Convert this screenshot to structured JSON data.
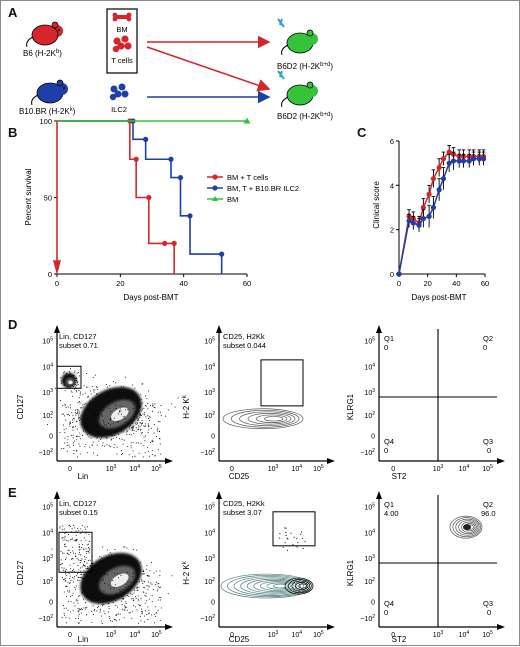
{
  "panels": {
    "A": "A",
    "B": "B",
    "C": "C",
    "D": "D",
    "E": "E"
  },
  "schematic": {
    "donor_b6": "B6 (H-2K",
    "donor_b6_sup": "b",
    "donor_b10": "B10.BR (H-2K",
    "donor_b10_sup": "k",
    "bm": "BM",
    "tcells": "T cells",
    "ilc2": "ILC2",
    "recipient": "B6D2 (H-2K",
    "recipient_sup": "b+d",
    "colors": {
      "b6_mouse": "#d7262b",
      "b10_mouse": "#1f3fa8",
      "recipient_mouse": "#35c33a",
      "red_arrow": "#d7262b",
      "blue_arrow": "#1f3fa8"
    }
  },
  "chart_data": [
    {
      "id": "B",
      "type": "line",
      "step": true,
      "xlabel": "Days post-BMT",
      "ylabel": "Percent survival",
      "xlim": [
        0,
        60
      ],
      "ylim": [
        0,
        100
      ],
      "xticks": [
        "0",
        "20",
        "40",
        "60"
      ],
      "yticks": [
        "0",
        "50",
        "100"
      ],
      "legend_position": "right",
      "series": [
        {
          "name": "BM + T cells",
          "color": "#d7262b",
          "marker": "circle",
          "x": [
            0,
            23,
            25,
            29,
            34,
            37
          ],
          "y": [
            100,
            75,
            50,
            20,
            20,
            0
          ]
        },
        {
          "name": "BM, T + B10.BR ILC2",
          "color": "#1f3fa8",
          "marker": "circle",
          "x": [
            0,
            24,
            28,
            36,
            39,
            42,
            52
          ],
          "y": [
            100,
            88,
            75,
            63,
            38,
            13,
            0
          ]
        },
        {
          "name": "BM",
          "color": "#35c33a",
          "marker": "triangle",
          "x": [
            0,
            60
          ],
          "y": [
            100,
            100
          ]
        }
      ]
    },
    {
      "id": "C",
      "type": "line",
      "xlabel": "Days post-BMT",
      "ylabel": "Clinical score",
      "xlim": [
        0,
        60
      ],
      "ylim": [
        0,
        6
      ],
      "xticks": [
        "0",
        "20",
        "40",
        "60"
      ],
      "yticks": [
        "0",
        "2",
        "4",
        "6"
      ],
      "series": [
        {
          "color": "#d7262b",
          "x": [
            0,
            7,
            10,
            14,
            17,
            21,
            24,
            28,
            31,
            35,
            38,
            42,
            45,
            49,
            52,
            56,
            59
          ],
          "y": [
            0,
            2.6,
            2.5,
            2.3,
            3.0,
            3.6,
            4.3,
            4.8,
            5.2,
            5.5,
            5.4,
            5.3,
            5.3,
            5.3,
            5.3,
            5.3,
            5.3
          ],
          "err": [
            0,
            0.3,
            0.3,
            0.3,
            0.4,
            0.4,
            0.4,
            0.4,
            0.3,
            0.3,
            0.3,
            0.3,
            0.3,
            0.3,
            0.3,
            0.3,
            0.3
          ]
        },
        {
          "color": "#1f3fa8",
          "x": [
            0,
            7,
            10,
            14,
            17,
            21,
            24,
            28,
            31,
            35,
            38,
            42,
            45,
            49,
            52,
            56,
            59
          ],
          "y": [
            0,
            2.4,
            2.3,
            2.2,
            2.5,
            2.6,
            3.0,
            3.8,
            4.3,
            5.0,
            5.1,
            5.1,
            5.1,
            5.1,
            5.2,
            5.2,
            5.2
          ],
          "err": [
            0,
            0.3,
            0.3,
            0.3,
            0.4,
            0.5,
            0.5,
            0.5,
            0.5,
            0.4,
            0.4,
            0.3,
            0.3,
            0.3,
            0.3,
            0.3,
            0.3
          ]
        }
      ]
    }
  ],
  "flow": {
    "D": {
      "p1": {
        "gate_title": "Lin, CD127",
        "gate_subset": "subset 0.71",
        "xlabel": "Lin",
        "ylabel": "CD127"
      },
      "p2": {
        "gate_title": "CD25, H2Kk",
        "gate_subset": "subset 0.044",
        "xlabel": "CD25",
        "ylabel": "H-2 K",
        "ylabel_sup": "k"
      },
      "p3": {
        "xlabel": "ST2",
        "ylabel": "KLRG1",
        "q1": "Q1",
        "q1v": "0",
        "q2": "Q2",
        "q2v": "0",
        "q3": "Q3",
        "q3v": "0",
        "q4": "Q4",
        "q4v": "0"
      }
    },
    "E": {
      "p1": {
        "gate_title": "Lin, CD127",
        "gate_subset": "subset 0.15",
        "xlabel": "Lin",
        "ylabel": "CD127"
      },
      "p2": {
        "gate_title": "CD25, H2Kk",
        "gate_subset": "subset 3.07",
        "xlabel": "CD25",
        "ylabel": "H-2 K",
        "ylabel_sup": "k"
      },
      "p3": {
        "xlabel": "ST2",
        "ylabel": "KLRG1",
        "q1": "Q1",
        "q1v": "4.00",
        "q2": "Q2",
        "q2v": "96.0",
        "q3": "Q3",
        "q3v": "0",
        "q4": "Q4",
        "q4v": "0"
      }
    },
    "axis_ticks_y": [
      "10",
      "10",
      "10",
      "10",
      "0",
      "−10"
    ],
    "axis_ticks_x": [
      "0",
      "10",
      "10",
      "10"
    ],
    "tick_exps_y": [
      "5",
      "4",
      "3",
      "2",
      "",
      "2"
    ],
    "tick_exps_x": [
      "",
      "3",
      "4",
      "5"
    ]
  }
}
